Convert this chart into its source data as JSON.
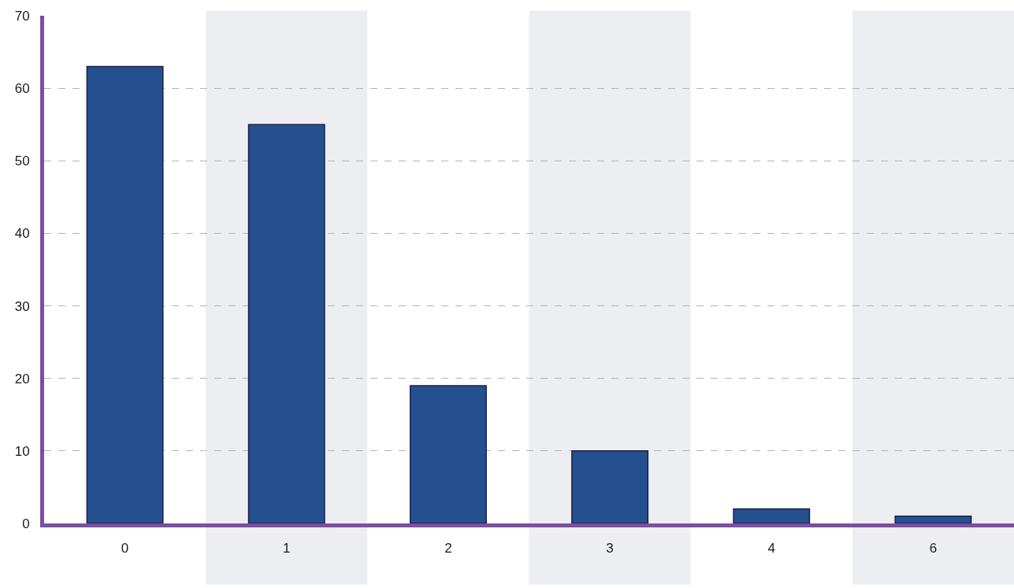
{
  "chart_data": {
    "type": "bar",
    "categories": [
      "0",
      "1",
      "2",
      "3",
      "4",
      "6"
    ],
    "values": [
      63,
      55,
      19,
      10,
      2,
      1
    ],
    "color": "#25508f",
    "ylim": [
      0,
      70
    ],
    "yticks": [
      0,
      10,
      20,
      30,
      40,
      50,
      60,
      70
    ],
    "grid": "y",
    "bands": [
      {
        "axis": "x",
        "from": "1",
        "to": "1",
        "color": "#eceef1"
      },
      {
        "axis": "x",
        "from": "3",
        "to": "3",
        "color": "#eceef1"
      },
      {
        "axis": "x",
        "from": "6",
        "to": "6",
        "color": "#eceef1"
      }
    ]
  }
}
